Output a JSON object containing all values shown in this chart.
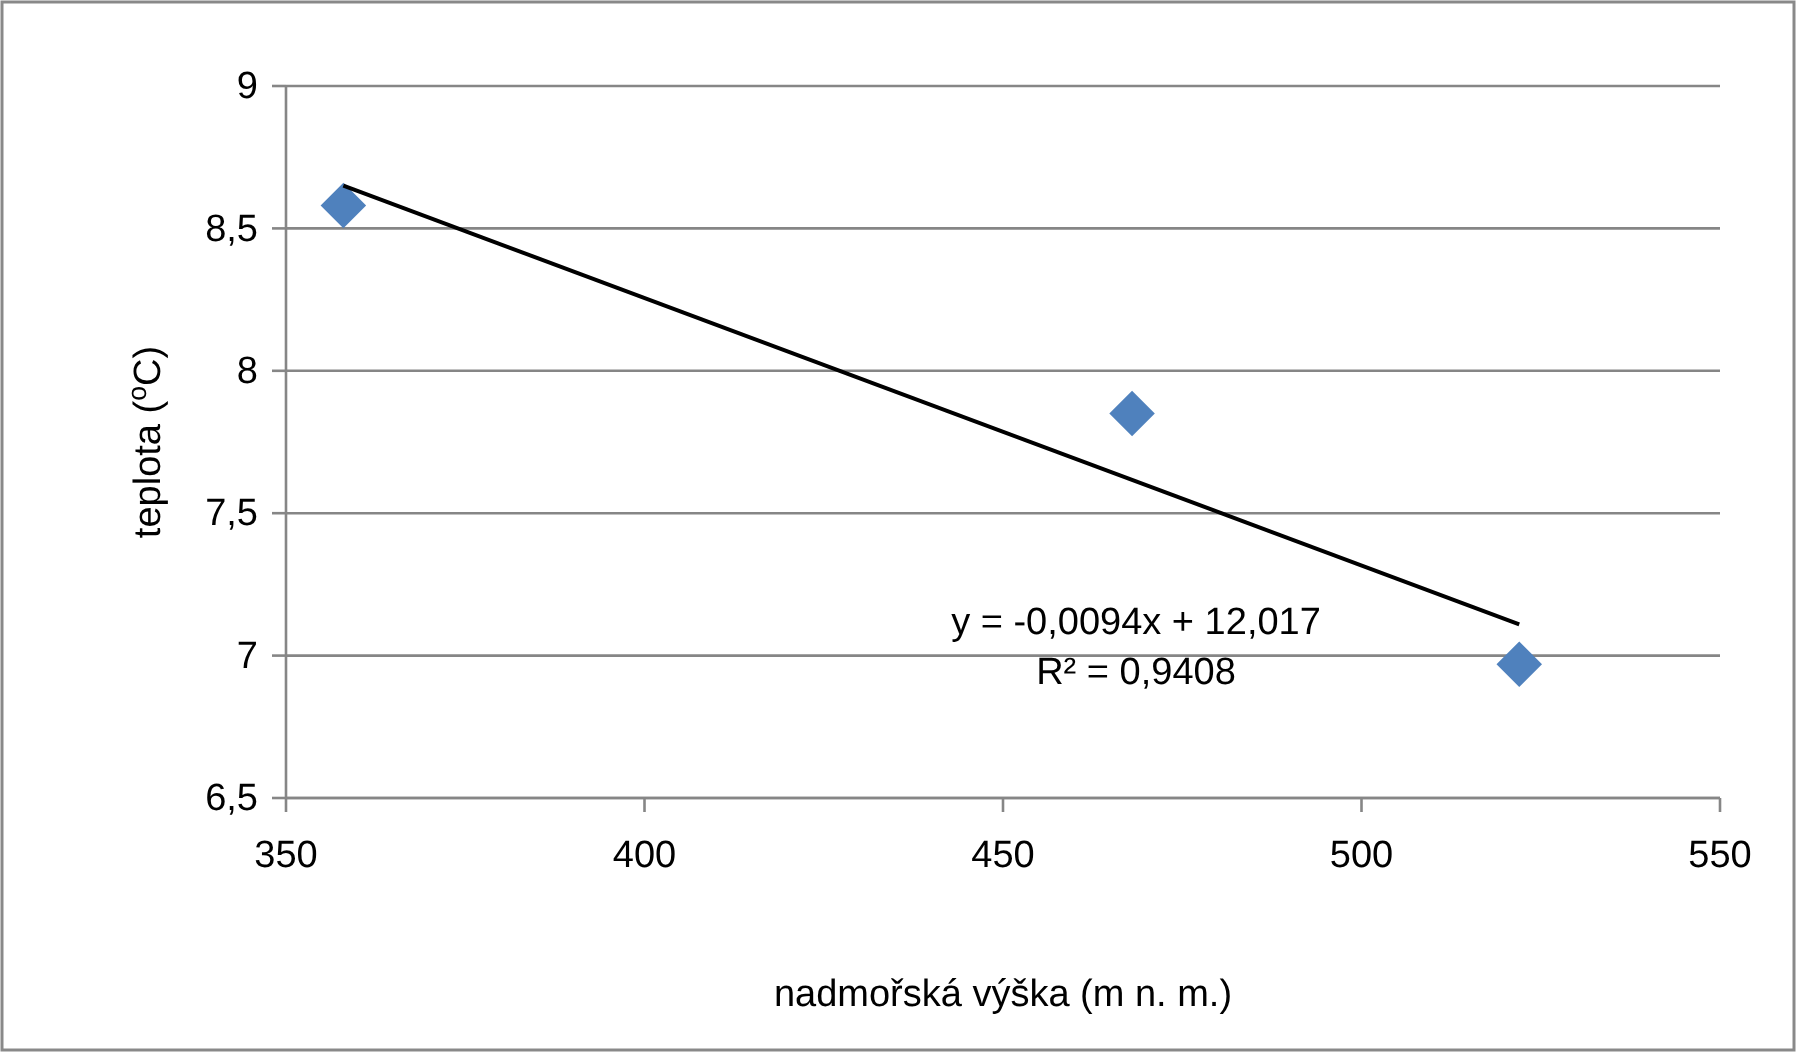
{
  "chart_data": {
    "type": "scatter",
    "xlabel": "nadmořská výška (m n. m.)",
    "ylabel": "teplota ($^{o}$C)",
    "x": [
      358,
      468,
      522
    ],
    "series": [
      {
        "color": "#4f81bd",
        "values": [
          8.58,
          7.85,
          6.97
        ],
        "marker": "diamond"
      },
      {
        "type": "line",
        "color": "#000000",
        "x": [
          358,
          522
        ],
        "values": [
          8.65,
          7.11
        ],
        "marker": "none",
        "line_style": "solid"
      }
    ],
    "xlim": [
      350,
      550
    ],
    "xticks": [
      350,
      400,
      450,
      500,
      550
    ],
    "ylim": [
      6.5,
      9
    ],
    "yticks": [
      {
        "value": 6.5,
        "label": "6,5"
      },
      7,
      {
        "value": 7.5,
        "label": "7,5"
      },
      8,
      {
        "value": 8.5,
        "label": "8,5"
      },
      9
    ],
    "grid": "y",
    "annotations": [
      "y = -0,0094x + 12,017",
      "R² = 0,9408"
    ]
  }
}
